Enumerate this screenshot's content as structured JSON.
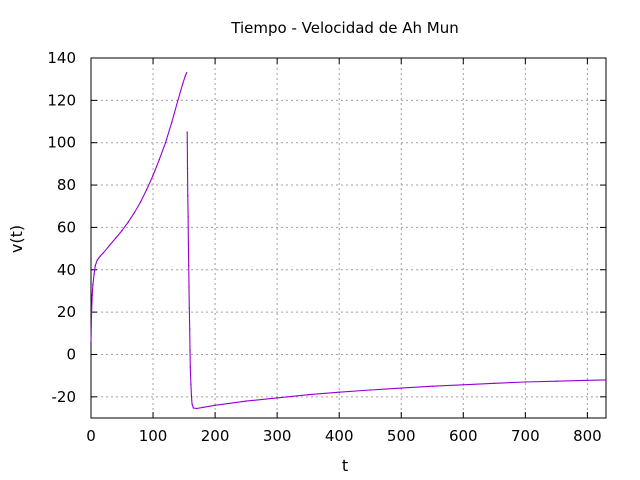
{
  "chart_data": {
    "type": "line",
    "title": "Tiempo - Velocidad de Ah Mun",
    "xlabel": "t",
    "ylabel": "v(t)",
    "xlim": [
      0,
      830
    ],
    "ylim": [
      -30,
      140
    ],
    "xticks": [
      0,
      100,
      200,
      300,
      400,
      500,
      600,
      700,
      800
    ],
    "yticks": [
      -20,
      0,
      20,
      40,
      60,
      80,
      100,
      120,
      140
    ],
    "grid": true,
    "line_color": "#9400d3",
    "series": [
      {
        "segments": [
          [
            [
              0,
              6
            ],
            [
              1,
              20
            ],
            [
              2,
              28
            ],
            [
              3,
              33
            ],
            [
              5,
              38
            ],
            [
              7,
              42
            ],
            [
              10,
              44.5
            ],
            [
              15,
              46.5
            ],
            [
              20,
              48
            ],
            [
              30,
              51.5
            ],
            [
              40,
              55
            ],
            [
              50,
              58.5
            ],
            [
              60,
              62.5
            ],
            [
              70,
              67
            ],
            [
              80,
              72
            ],
            [
              90,
              78
            ],
            [
              100,
              84.5
            ],
            [
              110,
              92
            ],
            [
              120,
              100
            ],
            [
              130,
              109.5
            ],
            [
              140,
              120
            ],
            [
              148,
              128
            ],
            [
              152,
              131.5
            ],
            [
              154,
              133
            ]
          ],
          [
            [
              155,
              105
            ],
            [
              155.5,
              88
            ],
            [
              156,
              75
            ],
            [
              156.5,
              65
            ],
            [
              157,
              52
            ],
            [
              157.5,
              42
            ],
            [
              158,
              32
            ],
            [
              158.5,
              22
            ],
            [
              159,
              12
            ],
            [
              159.5,
              2
            ],
            [
              160,
              -6
            ],
            [
              161,
              -14
            ],
            [
              162,
              -20
            ],
            [
              163,
              -23.5
            ],
            [
              165,
              -25.3
            ],
            [
              170,
              -25.5
            ],
            [
              180,
              -25
            ],
            [
              200,
              -24
            ],
            [
              250,
              -22
            ],
            [
              300,
              -20.5
            ],
            [
              350,
              -19
            ],
            [
              400,
              -17.8
            ],
            [
              450,
              -16.8
            ],
            [
              500,
              -15.9
            ],
            [
              550,
              -15
            ],
            [
              600,
              -14.3
            ],
            [
              650,
              -13.6
            ],
            [
              700,
              -13
            ],
            [
              750,
              -12.6
            ],
            [
              800,
              -12.2
            ],
            [
              830,
              -12
            ]
          ]
        ]
      }
    ]
  }
}
